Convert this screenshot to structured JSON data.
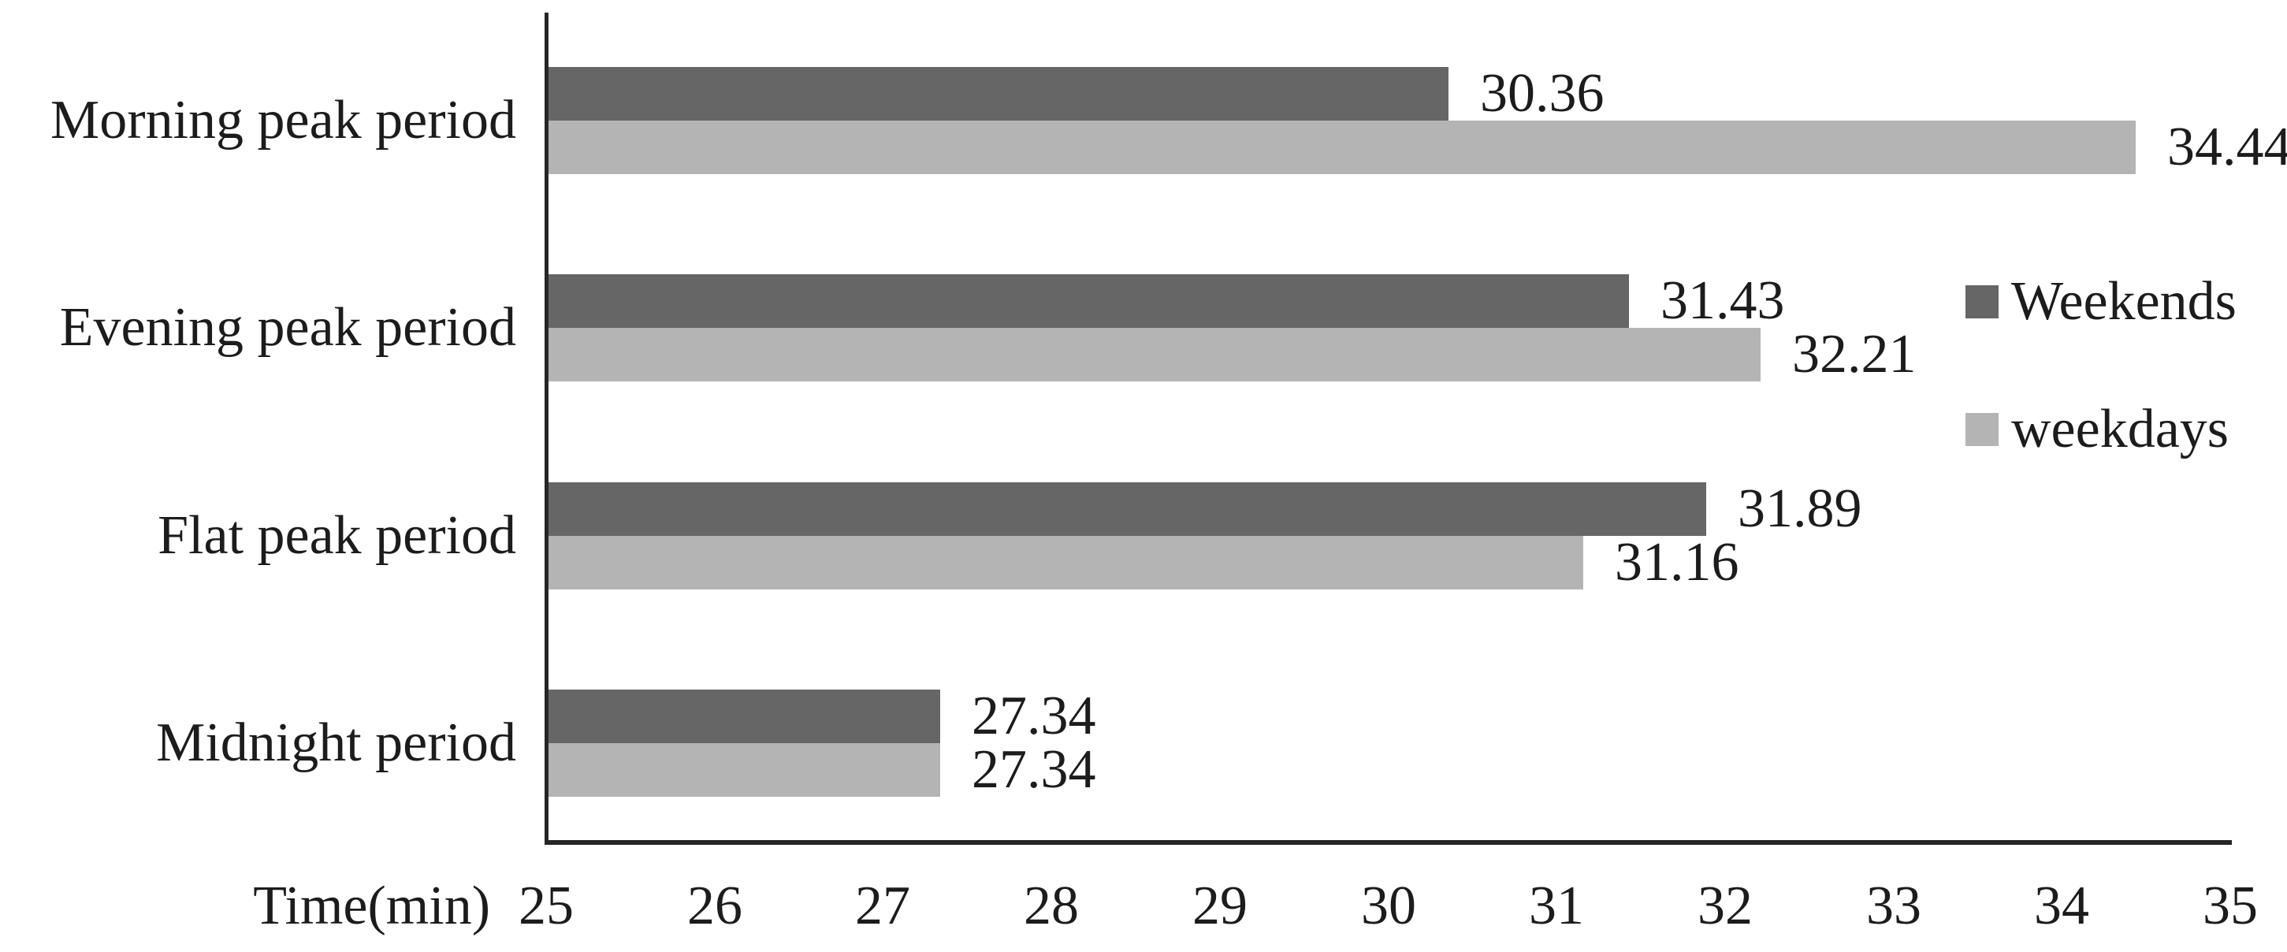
{
  "chart_data": {
    "type": "bar",
    "orientation": "horizontal",
    "title": "",
    "categories": [
      "Morning peak period",
      "Evening peak period",
      "Flat peak period",
      "Midnight period"
    ],
    "series": [
      {
        "name": "Weekends",
        "color": "#666666",
        "values": [
          30.36,
          31.43,
          31.89,
          27.34
        ]
      },
      {
        "name": "weekdays",
        "color": "#b4b4b4",
        "values": [
          34.44,
          32.21,
          31.16,
          27.34
        ]
      }
    ],
    "value_labels": [
      "30.36",
      "34.44",
      "31.43",
      "32.21",
      "31.89",
      "31.16",
      "27.34",
      "27.34"
    ],
    "xlabel": "Time(min)",
    "xlim": [
      25,
      35
    ],
    "xticks": [
      "25",
      "26",
      "27",
      "28",
      "29",
      "30",
      "31",
      "32",
      "33",
      "34",
      "35"
    ],
    "grid": "off",
    "legend_position": "right",
    "legend": [
      "Weekends",
      "weekdays"
    ]
  },
  "colors": {
    "weekends_bar": "#666666",
    "weekdays_bar": "#b4b4b4",
    "axis": "#262626",
    "text": "#1c1c1c",
    "background": "#ffffff"
  }
}
